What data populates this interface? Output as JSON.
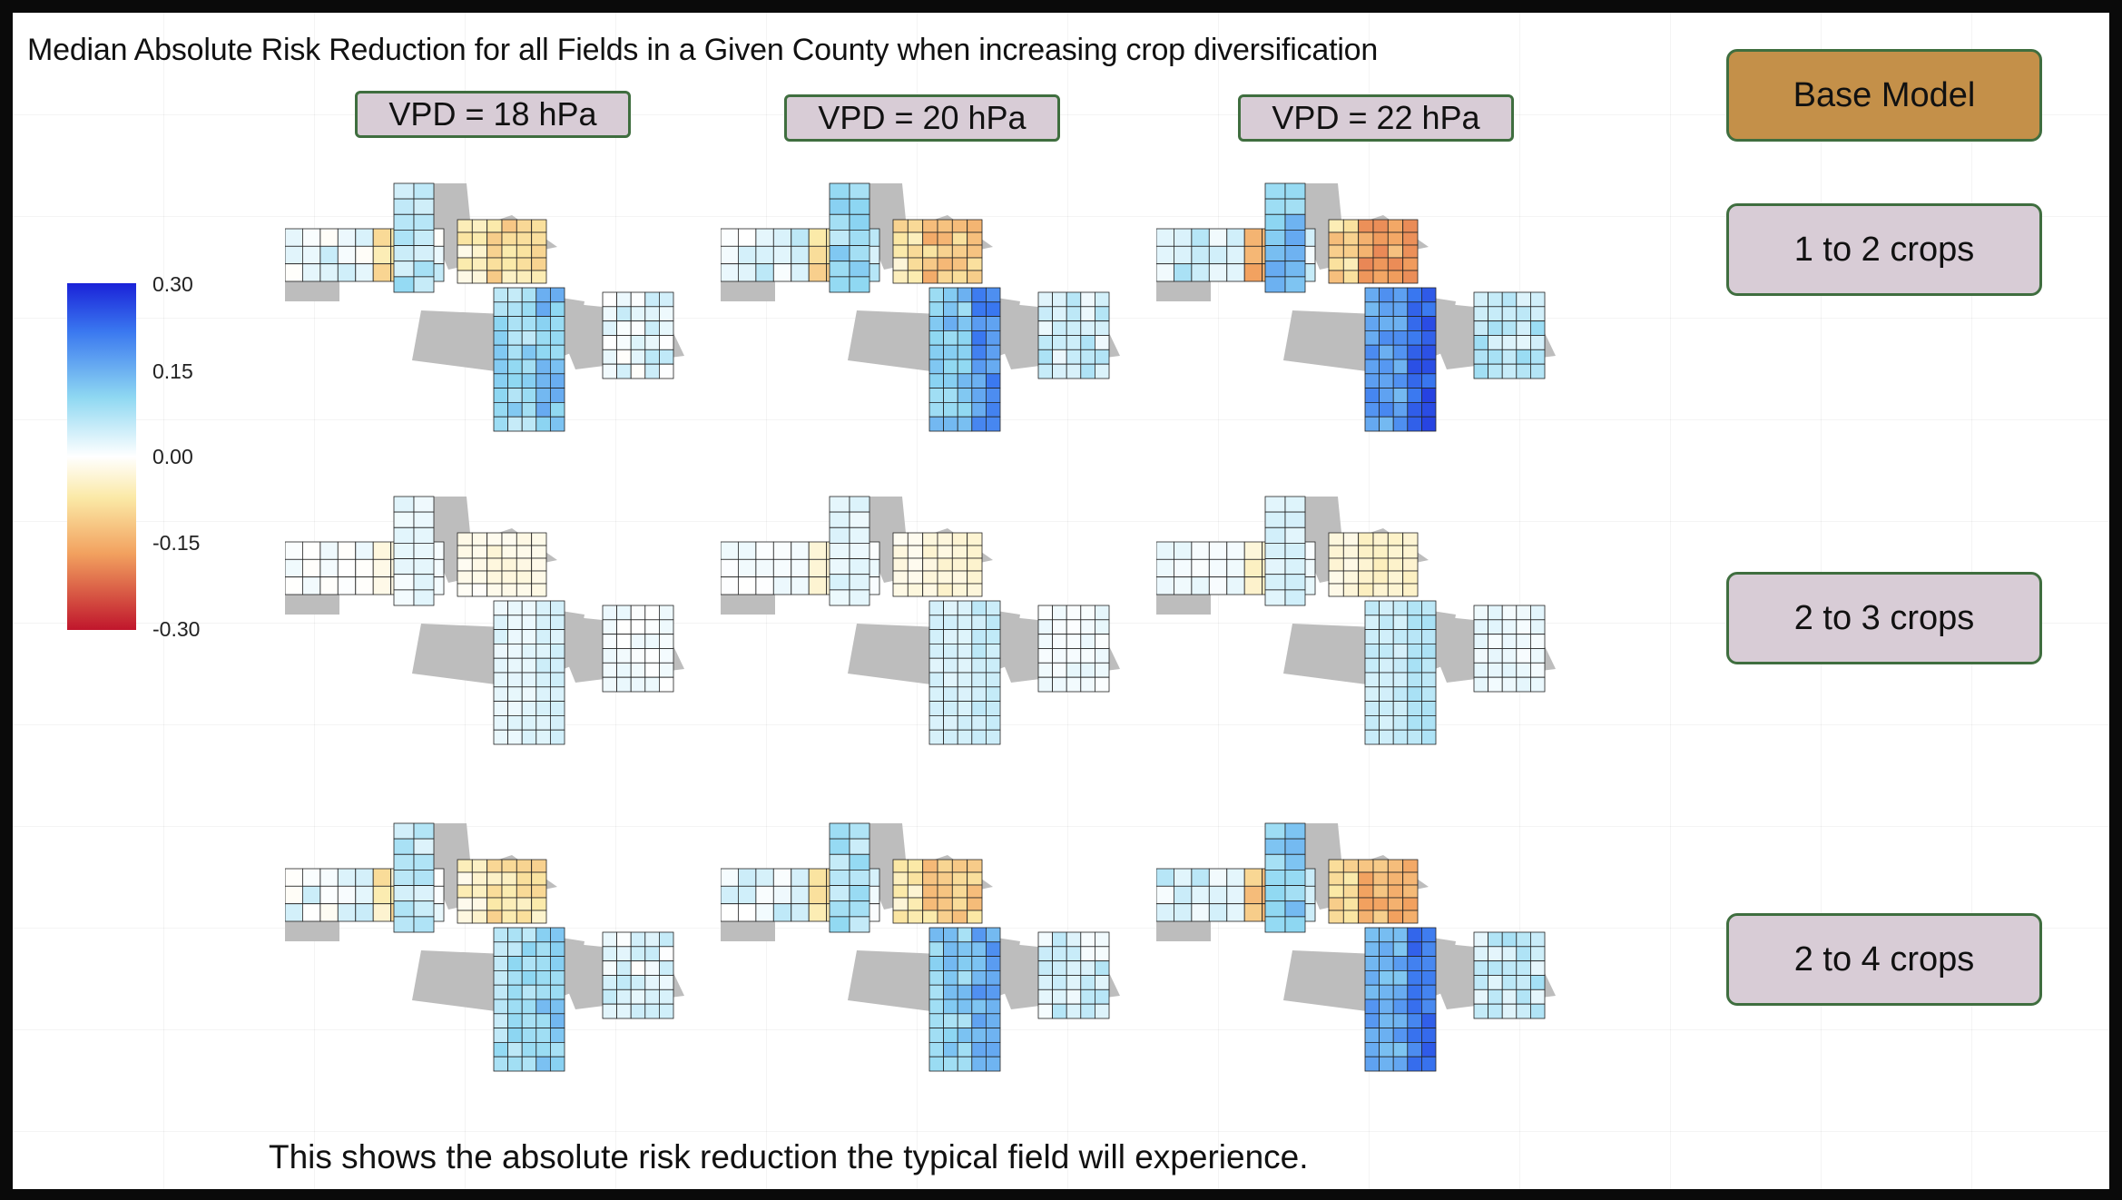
{
  "title": "Median Absolute Risk Reduction for all Fields in a Given County when increasing crop diversification",
  "vpd_headers": [
    "VPD = 18 hPa",
    "VPD = 20 hPa",
    "VPD = 22 hPa"
  ],
  "models": {
    "base": "Base Model",
    "one_two": "1 to 2 crops",
    "two_three": "2 to 3 crops",
    "two_four": "2 to 4 crops"
  },
  "legend": {
    "ticks": [
      "0.30",
      "0.15",
      "0.00",
      "-0.15",
      "-0.30"
    ],
    "colors": [
      "#1a22d8",
      "#3a78f0",
      "#8fd8f2",
      "#ffffff",
      "#fbe9a6",
      "#f2a15f",
      "#c0162c"
    ]
  },
  "footer": "This shows the absolute risk reduction the typical field will experience.",
  "map_colors": {
    "no_data": "#bdbdbd",
    "outline": "#222222"
  }
}
